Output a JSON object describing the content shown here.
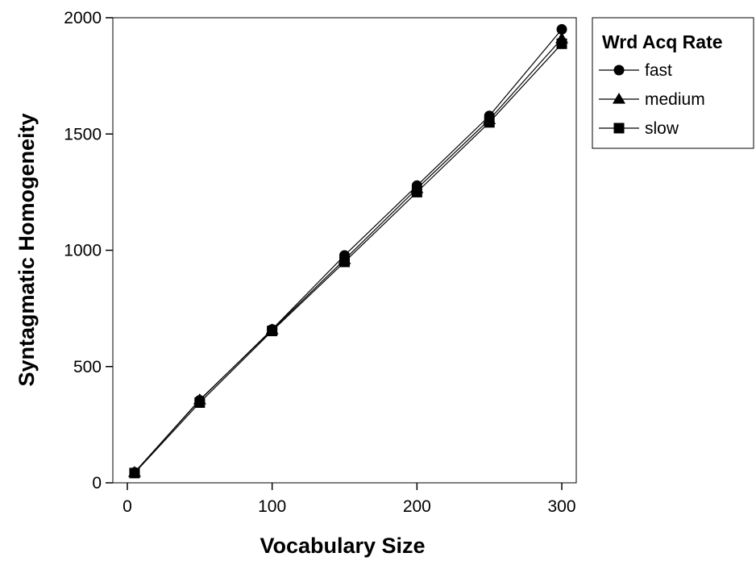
{
  "chart_data": {
    "type": "line",
    "title": "",
    "xlabel": "Vocabulary Size",
    "ylabel": "Syntagmatic Homogeneity",
    "xlim": [
      -10,
      310
    ],
    "ylim": [
      0,
      2000
    ],
    "xticks": [
      0,
      100,
      200,
      300
    ],
    "yticks": [
      0,
      500,
      1000,
      1500,
      2000
    ],
    "grid": false,
    "legend": {
      "title": "Wrd Acq Rate",
      "position": "top-right, outside plot"
    },
    "x": [
      5,
      50,
      100,
      150,
      200,
      250,
      300
    ],
    "series": [
      {
        "name": "fast",
        "marker": "circle",
        "values": [
          45,
          355,
          660,
          978,
          1278,
          1578,
          1950
        ]
      },
      {
        "name": "medium",
        "marker": "triangle",
        "values": [
          45,
          357,
          658,
          960,
          1265,
          1562,
          1910
        ]
      },
      {
        "name": "slow",
        "marker": "square",
        "values": [
          42,
          345,
          653,
          950,
          1250,
          1550,
          1888
        ]
      }
    ],
    "color": "#000000"
  }
}
